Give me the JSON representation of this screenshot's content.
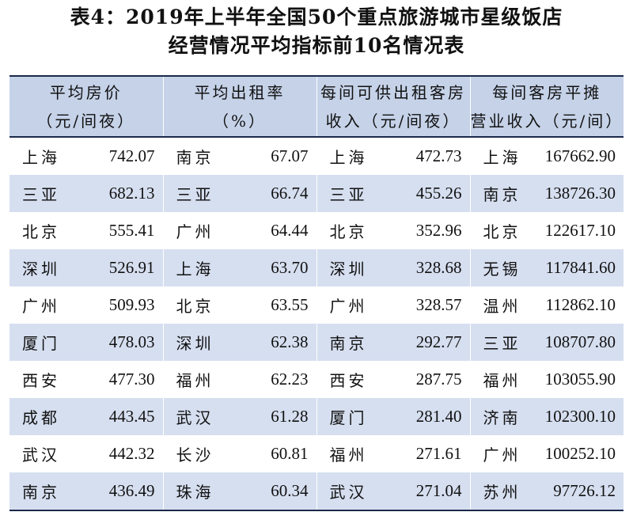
{
  "title": {
    "line1": "表4：2019年上半年全国50个重点旅游城市星级饭店",
    "line2": "经营情况平均指标前10名情况表"
  },
  "headers": [
    [
      "平均房价",
      "（元/间夜）"
    ],
    [
      "平均出租率",
      "（%）"
    ],
    [
      "每间可供出租客房",
      "收入（元/间夜）"
    ],
    [
      "每间客房平摊",
      "营业收入（元/间）"
    ]
  ],
  "rows": [
    [
      {
        "city": "上海",
        "value": "742.07"
      },
      {
        "city": "南京",
        "value": "67.07"
      },
      {
        "city": "上海",
        "value": "472.73"
      },
      {
        "city": "上海",
        "value": "167662.90"
      }
    ],
    [
      {
        "city": "三亚",
        "value": "682.13"
      },
      {
        "city": "三亚",
        "value": "66.74"
      },
      {
        "city": "三亚",
        "value": "455.26"
      },
      {
        "city": "南京",
        "value": "138726.30"
      }
    ],
    [
      {
        "city": "北京",
        "value": "555.41"
      },
      {
        "city": "广州",
        "value": "64.44"
      },
      {
        "city": "北京",
        "value": "352.96"
      },
      {
        "city": "北京",
        "value": "122617.10"
      }
    ],
    [
      {
        "city": "深圳",
        "value": "526.91"
      },
      {
        "city": "上海",
        "value": "63.70"
      },
      {
        "city": "深圳",
        "value": "328.68"
      },
      {
        "city": "无锡",
        "value": "117841.60"
      }
    ],
    [
      {
        "city": "广州",
        "value": "509.93"
      },
      {
        "city": "北京",
        "value": "63.55"
      },
      {
        "city": "广州",
        "value": "328.57"
      },
      {
        "city": "温州",
        "value": "112862.10"
      }
    ],
    [
      {
        "city": "厦门",
        "value": "478.03"
      },
      {
        "city": "深圳",
        "value": "62.38"
      },
      {
        "city": "南京",
        "value": "292.77"
      },
      {
        "city": "三亚",
        "value": "108707.80"
      }
    ],
    [
      {
        "city": "西安",
        "value": "477.30"
      },
      {
        "city": "福州",
        "value": "62.23"
      },
      {
        "city": "西安",
        "value": "287.75"
      },
      {
        "city": "福州",
        "value": "103055.90"
      }
    ],
    [
      {
        "city": "成都",
        "value": "443.45"
      },
      {
        "city": "武汉",
        "value": "61.28"
      },
      {
        "city": "厦门",
        "value": "281.40"
      },
      {
        "city": "济南",
        "value": "102300.10"
      }
    ],
    [
      {
        "city": "武汉",
        "value": "442.32"
      },
      {
        "city": "长沙",
        "value": "60.81"
      },
      {
        "city": "福州",
        "value": "271.61"
      },
      {
        "city": "广州",
        "value": "100252.10"
      }
    ],
    [
      {
        "city": "南京",
        "value": "436.49"
      },
      {
        "city": "珠海",
        "value": "60.34"
      },
      {
        "city": "武汉",
        "value": "271.04"
      },
      {
        "city": "苏州",
        "value": "97726.12"
      }
    ]
  ]
}
